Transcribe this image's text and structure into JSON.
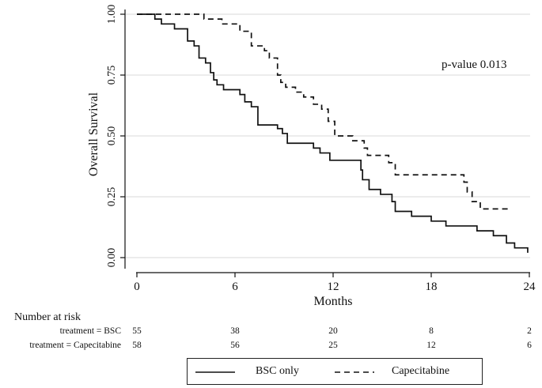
{
  "chart_data": {
    "type": "line",
    "title": "",
    "xlabel": "Months",
    "ylabel": "Overall Survival",
    "xlim": [
      0,
      24
    ],
    "ylim": [
      0,
      1
    ],
    "xticks": [
      "0",
      "6",
      "12",
      "18",
      "24"
    ],
    "yticks": [
      "0.00",
      "0.25",
      "0.50",
      "0.75",
      "1.00"
    ],
    "grid": "horizontal",
    "annotation": "p-value 0.013",
    "series": [
      {
        "name": "BSC only",
        "line_style": "solid",
        "color": "#111111",
        "steps": [
          [
            0,
            1.0
          ],
          [
            1.1,
            0.98
          ],
          [
            1.5,
            0.96
          ],
          [
            2.3,
            0.94
          ],
          [
            3.1,
            0.89
          ],
          [
            3.5,
            0.87
          ],
          [
            3.8,
            0.82
          ],
          [
            4.2,
            0.8
          ],
          [
            4.5,
            0.76
          ],
          [
            4.7,
            0.73
          ],
          [
            4.9,
            0.71
          ],
          [
            5.3,
            0.69
          ],
          [
            6.3,
            0.67
          ],
          [
            6.6,
            0.64
          ],
          [
            7.0,
            0.62
          ],
          [
            7.4,
            0.545
          ],
          [
            8.6,
            0.53
          ],
          [
            8.9,
            0.51
          ],
          [
            9.2,
            0.47
          ],
          [
            10.8,
            0.45
          ],
          [
            11.2,
            0.43
          ],
          [
            11.8,
            0.4
          ],
          [
            13.7,
            0.36
          ],
          [
            13.8,
            0.32
          ],
          [
            14.2,
            0.28
          ],
          [
            14.9,
            0.26
          ],
          [
            15.6,
            0.23
          ],
          [
            15.8,
            0.19
          ],
          [
            16.8,
            0.17
          ],
          [
            18.0,
            0.15
          ],
          [
            18.9,
            0.13
          ],
          [
            20.8,
            0.11
          ],
          [
            21.8,
            0.09
          ],
          [
            22.6,
            0.06
          ],
          [
            23.1,
            0.04
          ],
          [
            23.9,
            0.02
          ]
        ],
        "end": 23.9
      },
      {
        "name": "Capecitabine",
        "line_style": "dashed",
        "color": "#111111",
        "steps": [
          [
            0,
            1.0
          ],
          [
            4.1,
            0.98
          ],
          [
            5.2,
            0.96
          ],
          [
            6.3,
            0.93
          ],
          [
            7.0,
            0.87
          ],
          [
            7.8,
            0.85
          ],
          [
            8.1,
            0.82
          ],
          [
            8.6,
            0.75
          ],
          [
            8.8,
            0.72
          ],
          [
            9.1,
            0.7
          ],
          [
            9.7,
            0.68
          ],
          [
            10.2,
            0.66
          ],
          [
            10.8,
            0.63
          ],
          [
            11.3,
            0.61
          ],
          [
            11.7,
            0.56
          ],
          [
            12.1,
            0.5
          ],
          [
            13.2,
            0.48
          ],
          [
            13.9,
            0.45
          ],
          [
            14.1,
            0.42
          ],
          [
            15.4,
            0.39
          ],
          [
            15.8,
            0.34
          ],
          [
            20.0,
            0.31
          ],
          [
            20.2,
            0.27
          ],
          [
            20.5,
            0.23
          ],
          [
            21.0,
            0.2
          ]
        ],
        "end": 22.8
      }
    ],
    "risk_table": {
      "title": "Number at risk",
      "times": [
        0,
        6,
        12,
        18,
        24
      ],
      "rows": [
        {
          "label": "treatment = BSC",
          "values": [
            "55",
            "38",
            "20",
            "8",
            "2"
          ]
        },
        {
          "label": "treatment = Capecitabine",
          "values": [
            "58",
            "56",
            "25",
            "12",
            "6"
          ]
        }
      ]
    },
    "legend": {
      "placement": "bottom",
      "entries": [
        "BSC only",
        "Capecitabine"
      ]
    }
  }
}
